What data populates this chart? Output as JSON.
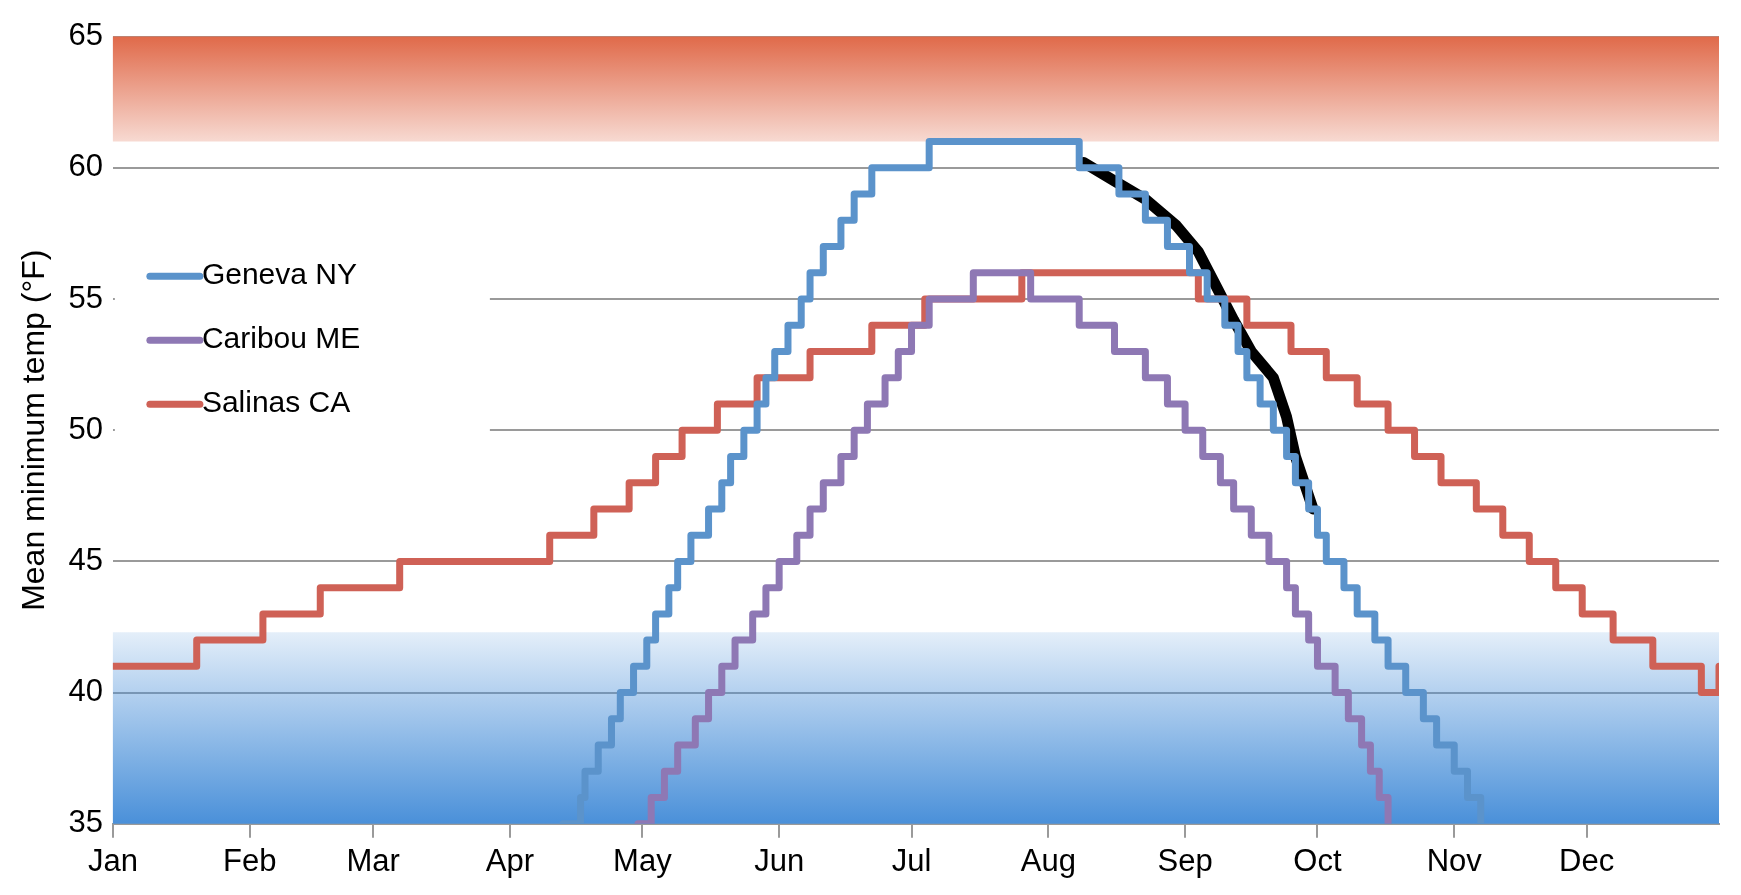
{
  "chart_data": {
    "type": "step",
    "ylabel": "Mean minimum temp (°F)",
    "xlim": [
      "--01-01",
      "--12-31"
    ],
    "ylim": [
      35,
      65
    ],
    "xticks": [
      {
        "value": "--01-01",
        "label": "Jan"
      },
      {
        "value": "--02-01",
        "label": "Feb"
      },
      {
        "value": "--03-01",
        "label": "Mar"
      },
      {
        "value": "--04-01",
        "label": "Apr"
      },
      {
        "value": "--05-01",
        "label": "May"
      },
      {
        "value": "--06-01",
        "label": "Jun"
      },
      {
        "value": "--07-01",
        "label": "Jul"
      },
      {
        "value": "--08-01",
        "label": "Aug"
      },
      {
        "value": "--09-01",
        "label": "Sep"
      },
      {
        "value": "--10-01",
        "label": "Oct"
      },
      {
        "value": "--11-01",
        "label": "Nov"
      },
      {
        "value": "--12-01",
        "label": "Dec"
      }
    ],
    "yticks": [
      35,
      40,
      45,
      50,
      55,
      60,
      65
    ],
    "grid": "y",
    "legend": "left",
    "bands": [
      {
        "axis": "y",
        "from": 61,
        "to": 65,
        "color": "#e06a4a"
      },
      {
        "axis": "y",
        "from": 35,
        "to": 42.3,
        "color": "#4a90d9"
      }
    ],
    "series": [
      {
        "name": "Geneva NY",
        "color": "#5b93cb",
        "x": [
          "--04-13",
          "--04-17",
          "--04-18",
          "--04-21",
          "--04-24",
          "--04-26",
          "--04-29",
          "--05-02",
          "--05-04",
          "--05-07",
          "--05-09",
          "--05-12",
          "--05-16",
          "--05-19",
          "--05-21",
          "--05-24",
          "--05-27",
          "--05-29",
          "--05-31",
          "--06-03",
          "--06-06",
          "--06-08",
          "--06-11",
          "--06-15",
          "--06-18",
          "--06-22",
          "--07-05",
          "--08-08",
          "--08-17",
          "--08-23",
          "--08-28",
          "--09-02",
          "--09-06",
          "--09-10",
          "--09-13",
          "--09-15",
          "--09-18",
          "--09-21",
          "--09-24",
          "--09-26",
          "--09-29",
          "--10-01",
          "--10-03",
          "--10-07",
          "--10-10",
          "--10-14",
          "--10-17",
          "--10-21",
          "--10-25",
          "--10-28",
          "--11-01",
          "--11-04",
          "--11-07"
        ],
        "values": [
          35,
          36,
          37,
          38,
          39,
          40,
          41,
          42,
          43,
          44,
          45,
          46,
          47,
          48,
          49,
          50,
          51,
          52,
          53,
          54,
          55,
          56,
          57,
          58,
          59,
          60,
          61,
          60,
          59,
          58,
          57,
          56,
          55,
          54,
          53,
          52,
          51,
          50,
          49,
          48,
          47,
          46,
          45,
          44,
          43,
          42,
          41,
          40,
          39,
          38,
          37,
          36,
          35
        ]
      },
      {
        "name": "Caribou ME",
        "color": "#8e78b4",
        "x": [
          "--04-30",
          "--05-03",
          "--05-06",
          "--05-09",
          "--05-13",
          "--05-16",
          "--05-19",
          "--05-22",
          "--05-26",
          "--05-29",
          "--06-01",
          "--06-05",
          "--06-08",
          "--06-11",
          "--06-15",
          "--06-18",
          "--06-21",
          "--06-25",
          "--06-28",
          "--07-01",
          "--07-05",
          "--07-15",
          "--07-28",
          "--08-08",
          "--08-16",
          "--08-23",
          "--08-28",
          "--09-01",
          "--09-05",
          "--09-09",
          "--09-12",
          "--09-16",
          "--09-20",
          "--09-24",
          "--09-26",
          "--09-29",
          "--10-01",
          "--10-05",
          "--10-08",
          "--10-11",
          "--10-13",
          "--10-15",
          "--10-17"
        ],
        "values": [
          35,
          36,
          37,
          38,
          39,
          40,
          41,
          42,
          43,
          44,
          45,
          46,
          47,
          48,
          49,
          50,
          51,
          52,
          53,
          54,
          55,
          56,
          55,
          54,
          53,
          52,
          51,
          50,
          49,
          48,
          47,
          46,
          45,
          44,
          43,
          42,
          41,
          40,
          39,
          38,
          37,
          36,
          35
        ]
      },
      {
        "name": "Salinas CA",
        "color": "#cf6156",
        "x": [
          "--01-01",
          "--01-20",
          "--02-04",
          "--02-17",
          "--03-07",
          "--04-10",
          "--04-20",
          "--04-28",
          "--05-04",
          "--05-10",
          "--05-18",
          "--05-27",
          "--06-08",
          "--06-22",
          "--07-04",
          "--07-26",
          "--09-04",
          "--09-15",
          "--09-25",
          "--10-03",
          "--10-10",
          "--10-17",
          "--10-23",
          "--10-29",
          "--11-06",
          "--11-12",
          "--11-18",
          "--11-24",
          "--11-30",
          "--12-07",
          "--12-16",
          "--12-27",
          "--12-31"
        ],
        "values": [
          41,
          42,
          43,
          44,
          45,
          46,
          47,
          48,
          49,
          50,
          51,
          52,
          53,
          54,
          55,
          56,
          55,
          54,
          53,
          52,
          51,
          50,
          49,
          48,
          47,
          46,
          45,
          44,
          43,
          42,
          41,
          40,
          41
        ]
      },
      {
        "type": "line",
        "color": "#000000",
        "x": [
          "--08-09",
          "--08-16",
          "--08-23",
          "--08-30",
          "--09-04",
          "--09-08",
          "--09-12",
          "--09-16",
          "--09-21",
          "--09-24",
          "--09-26",
          "--09-30"
        ],
        "values": [
          60.2,
          59.5,
          58.8,
          57.8,
          56.8,
          55.5,
          54.2,
          53,
          52,
          50.5,
          49,
          47
        ]
      }
    ]
  }
}
